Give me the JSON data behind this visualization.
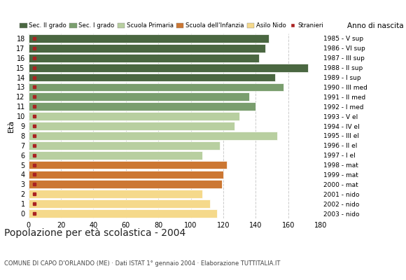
{
  "ages": [
    18,
    17,
    16,
    15,
    14,
    13,
    12,
    11,
    10,
    9,
    8,
    7,
    6,
    5,
    4,
    3,
    2,
    1,
    0
  ],
  "values": [
    148,
    146,
    142,
    172,
    152,
    157,
    136,
    140,
    130,
    127,
    153,
    118,
    107,
    122,
    120,
    119,
    107,
    112,
    116
  ],
  "bar_colors": [
    "#4a6741",
    "#4a6741",
    "#4a6741",
    "#4a6741",
    "#4a6741",
    "#7a9e6e",
    "#7a9e6e",
    "#7a9e6e",
    "#b8cfa0",
    "#b8cfa0",
    "#b8cfa0",
    "#b8cfa0",
    "#b8cfa0",
    "#cc7733",
    "#cc7733",
    "#cc7733",
    "#f5d98b",
    "#f5d98b",
    "#f5d98b"
  ],
  "year_labels": [
    "1985 - V sup",
    "1986 - VI sup",
    "1987 - III sup",
    "1988 - II sup",
    "1989 - I sup",
    "1990 - III med",
    "1991 - II med",
    "1992 - I med",
    "1993 - V el",
    "1994 - IV el",
    "1995 - III el",
    "1996 - II el",
    "1997 - I el",
    "1998 - mat",
    "1999 - mat",
    "2000 - mat",
    "2001 - nido",
    "2002 - nido",
    "2003 - nido"
  ],
  "legend_labels": [
    "Sec. II grado",
    "Sec. I grado",
    "Scuola Primaria",
    "Scuola dell'Infanzia",
    "Asilo Nido",
    "Stranieri"
  ],
  "legend_colors": [
    "#4a6741",
    "#7a9e6e",
    "#b8cfa0",
    "#cc7733",
    "#f5d98b",
    "#aa2222"
  ],
  "title": "Popolazione per età scolastica - 2004",
  "subtitle": "COMUNE DI CAPO D'ORLANDO (ME) · Dati ISTAT 1° gennaio 2004 · Elaborazione TUTTITALIA.IT",
  "xlabel_eta": "Età",
  "xlabel_anno": "Anno di nascita",
  "xlim": [
    0,
    180
  ],
  "xticks": [
    0,
    20,
    40,
    60,
    80,
    100,
    120,
    140,
    160,
    180
  ],
  "stranieri_color": "#aa2222",
  "background_color": "#ffffff",
  "grid_color": "#cccccc"
}
